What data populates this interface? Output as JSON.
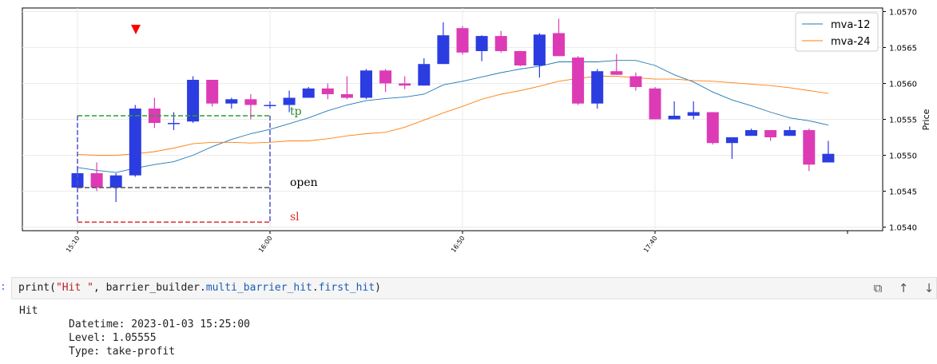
{
  "chart_data": {
    "type": "candlestick",
    "ylabel": "Price",
    "ylim": [
      1.05395,
      1.05705
    ],
    "y_ticks": [
      "1.0540",
      "1.0545",
      "1.0550",
      "1.0555",
      "1.0560",
      "1.0565",
      "1.0570"
    ],
    "x_ticks": [
      "15:10",
      "16:00",
      "16:50",
      "17:40"
    ],
    "x_tick_indices": [
      0,
      10,
      20,
      30
    ],
    "legend": [
      {
        "name": "mva-12",
        "color": "#1f77b4"
      },
      {
        "name": "mva-24",
        "color": "#ff7f0e"
      }
    ],
    "legend_position": "top-right",
    "colors": {
      "up": "#2b3de0",
      "down": "#dd3bb5",
      "tp": "#2ca02c",
      "open": "#555555",
      "sl": "#e03030",
      "box": "#5050d0",
      "marker": "#ff0000"
    },
    "candles": [
      {
        "o": 1.05455,
        "h": 1.05485,
        "l": 1.05455,
        "c": 1.05475
      },
      {
        "o": 1.05475,
        "h": 1.0549,
        "l": 1.0545,
        "c": 1.05455
      },
      {
        "o": 1.05455,
        "h": 1.05475,
        "l": 1.05435,
        "c": 1.05472
      },
      {
        "o": 1.05472,
        "h": 1.0557,
        "l": 1.0547,
        "c": 1.05565
      },
      {
        "o": 1.05565,
        "h": 1.0558,
        "l": 1.05538,
        "c": 1.05545
      },
      {
        "o": 1.05545,
        "h": 1.0556,
        "l": 1.05535,
        "c": 1.05545
      },
      {
        "o": 1.05547,
        "h": 1.0561,
        "l": 1.05545,
        "c": 1.05605
      },
      {
        "o": 1.05605,
        "h": 1.05605,
        "l": 1.05568,
        "c": 1.05572
      },
      {
        "o": 1.05572,
        "h": 1.0558,
        "l": 1.05565,
        "c": 1.05578
      },
      {
        "o": 1.05578,
        "h": 1.05585,
        "l": 1.0555,
        "c": 1.0557
      },
      {
        "o": 1.0557,
        "h": 1.05575,
        "l": 1.05565,
        "c": 1.0557
      },
      {
        "o": 1.0557,
        "h": 1.0559,
        "l": 1.0556,
        "c": 1.0558
      },
      {
        "o": 1.0558,
        "h": 1.05595,
        "l": 1.0558,
        "c": 1.05593
      },
      {
        "o": 1.05593,
        "h": 1.056,
        "l": 1.05578,
        "c": 1.05585
      },
      {
        "o": 1.05585,
        "h": 1.0561,
        "l": 1.05578,
        "c": 1.0558
      },
      {
        "o": 1.0558,
        "h": 1.0562,
        "l": 1.05578,
        "c": 1.05618
      },
      {
        "o": 1.05618,
        "h": 1.0562,
        "l": 1.05588,
        "c": 1.056
      },
      {
        "o": 1.056,
        "h": 1.0561,
        "l": 1.05592,
        "c": 1.05597
      },
      {
        "o": 1.05597,
        "h": 1.05635,
        "l": 1.05597,
        "c": 1.05627
      },
      {
        "o": 1.05627,
        "h": 1.05685,
        "l": 1.05627,
        "c": 1.05667
      },
      {
        "o": 1.05677,
        "h": 1.0568,
        "l": 1.0564,
        "c": 1.05643
      },
      {
        "o": 1.05645,
        "h": 1.05667,
        "l": 1.05631,
        "c": 1.05666
      },
      {
        "o": 1.05666,
        "h": 1.05673,
        "l": 1.05643,
        "c": 1.05645
      },
      {
        "o": 1.05645,
        "h": 1.05645,
        "l": 1.05624,
        "c": 1.05625
      },
      {
        "o": 1.05625,
        "h": 1.0567,
        "l": 1.05608,
        "c": 1.05668
      },
      {
        "o": 1.0567,
        "h": 1.0569,
        "l": 1.05638,
        "c": 1.05638
      },
      {
        "o": 1.05636,
        "h": 1.05638,
        "l": 1.0557,
        "c": 1.05572
      },
      {
        "o": 1.05572,
        "h": 1.0562,
        "l": 1.05565,
        "c": 1.05617
      },
      {
        "o": 1.05617,
        "h": 1.05641,
        "l": 1.05612,
        "c": 1.05612
      },
      {
        "o": 1.0561,
        "h": 1.05615,
        "l": 1.0559,
        "c": 1.05595
      },
      {
        "o": 1.05593,
        "h": 1.05595,
        "l": 1.0555,
        "c": 1.0555
      },
      {
        "o": 1.0555,
        "h": 1.05575,
        "l": 1.0555,
        "c": 1.05555
      },
      {
        "o": 1.05555,
        "h": 1.05575,
        "l": 1.0555,
        "c": 1.0556
      },
      {
        "o": 1.0556,
        "h": 1.0556,
        "l": 1.05515,
        "c": 1.05517
      },
      {
        "o": 1.05517,
        "h": 1.05525,
        "l": 1.05495,
        "c": 1.05525
      },
      {
        "o": 1.05527,
        "h": 1.05537,
        "l": 1.05527,
        "c": 1.05535
      },
      {
        "o": 1.05535,
        "h": 1.05535,
        "l": 1.0552,
        "c": 1.05525
      },
      {
        "o": 1.05527,
        "h": 1.0554,
        "l": 1.05527,
        "c": 1.05535
      },
      {
        "o": 1.05535,
        "h": 1.05537,
        "l": 1.05478,
        "c": 1.05487
      },
      {
        "o": 1.0549,
        "h": 1.0552,
        "l": 1.0549,
        "c": 1.05502
      }
    ],
    "mva_12": [
      1.05483,
      1.05479,
      1.05476,
      1.05482,
      1.05487,
      1.05491,
      1.055,
      1.05512,
      1.05522,
      1.0553,
      1.05536,
      1.05544,
      1.05552,
      1.05562,
      1.0557,
      1.05576,
      1.05579,
      1.05581,
      1.05585,
      1.05598,
      1.05603,
      1.05609,
      1.05615,
      1.0562,
      1.05624,
      1.0563,
      1.0563,
      1.0563,
      1.05632,
      1.05632,
      1.05625,
      1.05612,
      1.05602,
      1.05588,
      1.05577,
      1.05569,
      1.0556,
      1.05552,
      1.05548,
      1.05542
    ],
    "mva_24": [
      1.05501,
      1.055,
      1.055,
      1.05502,
      1.05505,
      1.0551,
      1.05516,
      1.05518,
      1.05518,
      1.05517,
      1.05518,
      1.0552,
      1.0552,
      1.05523,
      1.05527,
      1.0553,
      1.05532,
      1.05539,
      1.05549,
      1.05559,
      1.05568,
      1.05578,
      1.05585,
      1.0559,
      1.05596,
      1.05603,
      1.05607,
      1.0561,
      1.0561,
      1.05608,
      1.05606,
      1.05606,
      1.05604,
      1.05603,
      1.05601,
      1.05599,
      1.05597,
      1.05594,
      1.0559,
      1.05586
    ],
    "annotations": {
      "tp": {
        "label": "tp",
        "price": 1.05555
      },
      "open": {
        "label": "open",
        "price": 1.05455
      },
      "sl": {
        "label": "sl",
        "price": 1.05407
      },
      "barrier_box": {
        "start_index": 0,
        "end_index": 10,
        "top": 1.05555,
        "bottom": 1.05407
      },
      "marker_index": 3,
      "marker_price": 1.0569
    }
  },
  "cell": {
    "prompt": ":",
    "code_parts": {
      "p1": "print(",
      "s1": "\"Hit \"",
      "p2": ", barrier_builder.",
      "a1": "multi_barrier_hit",
      "p3": ".",
      "a2": "first_hit",
      "p4": ")"
    },
    "tools": {
      "copy": "⧉",
      "up": "↑",
      "down": "↓"
    }
  },
  "output": {
    "line1": "Hit",
    "line2": "Datetime: 2023-01-03 15:25:00",
    "line3": "Level: 1.05555",
    "line4": "Type: take-profit"
  }
}
